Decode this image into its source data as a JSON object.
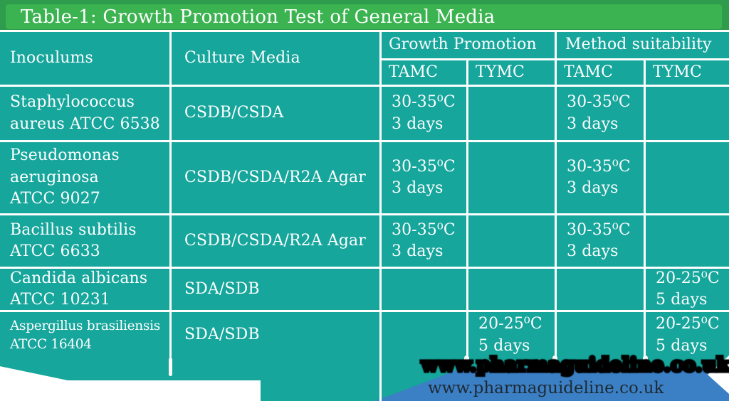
{
  "title": "Table-1: Growth Promotion Test of General Media",
  "watermark": "www.pharmaguideline.co.uk",
  "colors": {
    "header_green": "#2E9C4C",
    "title_band_green": "#3CB351",
    "cell_teal": "#16A69C",
    "banner_blue": "#3B7FC4"
  },
  "table": {
    "col_headers": {
      "inoculums": "Inoculums",
      "culture_media": "Culture Media",
      "growth_promotion": "Growth Promotion",
      "method_suitability": "Method suitability",
      "gp_tamc": "TAMC",
      "gp_tymc": "TYMC",
      "ms_tamc": "TAMC",
      "ms_tymc": "TYMC"
    },
    "rows": [
      {
        "inoculum": "Staphylococcus\naureus ATCC 6538",
        "culture_media": "CSDB/CSDA",
        "gp_tamc": "30-35⁰C\n3 days",
        "gp_tymc": "",
        "ms_tamc": "30-35⁰C\n3 days",
        "ms_tymc": ""
      },
      {
        "inoculum": "Pseudomonas\naeruginosa\nATCC 9027",
        "culture_media": "CSDB/CSDA/R2A Agar",
        "gp_tamc": "30-35⁰C\n3 days",
        "gp_tymc": "",
        "ms_tamc": "30-35⁰C\n3 days",
        "ms_tymc": ""
      },
      {
        "inoculum": "Bacillus subtilis\nATCC 6633",
        "culture_media": "CSDB/CSDA/R2A Agar",
        "gp_tamc": "30-35⁰C\n3 days",
        "gp_tymc": "",
        "ms_tamc": "30-35⁰C\n3 days",
        "ms_tymc": ""
      },
      {
        "inoculum": "Candida albicans\nATCC  10231",
        "culture_media": "SDA/SDB",
        "gp_tamc": "",
        "gp_tymc": "",
        "ms_tamc": "",
        "ms_tymc": "20-25⁰C\n5 days"
      },
      {
        "inoculum": "Aspergillus brasiliensis\nATCC 16404",
        "culture_media": "SDA/SDB",
        "gp_tamc": "",
        "gp_tymc": "20-25⁰C\n5 days",
        "ms_tamc": "",
        "ms_tymc": "20-25⁰C\n5 days"
      }
    ]
  }
}
